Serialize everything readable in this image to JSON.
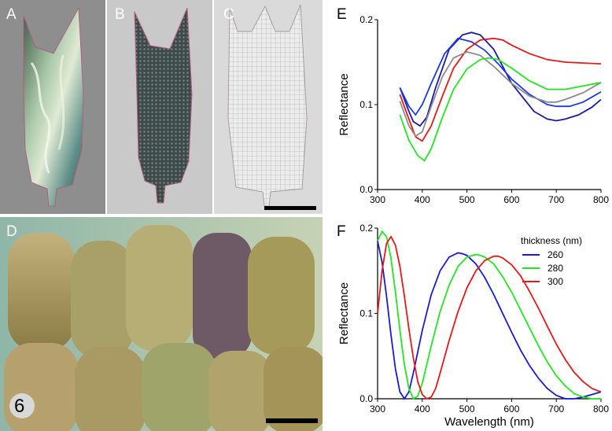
{
  "figure_number": "6",
  "panels": {
    "A": {
      "label": "A"
    },
    "B": {
      "label": "B"
    },
    "C": {
      "label": "C"
    },
    "D": {
      "label": "D"
    },
    "E": {
      "label": "E"
    },
    "F": {
      "label": "F"
    }
  },
  "chart_data": [
    {
      "panel": "E",
      "type": "line",
      "title": "",
      "xlabel": "",
      "ylabel": "Reflectance",
      "xlim": [
        300,
        800
      ],
      "ylim": [
        0.0,
        0.2
      ],
      "xticks": [
        "300",
        "400",
        "500",
        "600",
        "700",
        "800"
      ],
      "yticks": [
        "0.0",
        "0.1",
        "0.2"
      ],
      "series": [
        {
          "name": "blue-dark",
          "color": "#1a1aa8",
          "x": [
            350,
            370,
            380,
            395,
            410,
            430,
            460,
            490,
            510,
            530,
            560,
            600,
            650,
            680,
            700,
            720,
            750,
            780,
            800
          ],
          "y": [
            0.12,
            0.092,
            0.08,
            0.075,
            0.085,
            0.12,
            0.165,
            0.182,
            0.185,
            0.182,
            0.165,
            0.125,
            0.092,
            0.083,
            0.081,
            0.083,
            0.088,
            0.097,
            0.106
          ]
        },
        {
          "name": "blue",
          "color": "#1a3ae8",
          "x": [
            350,
            370,
            385,
            400,
            420,
            450,
            480,
            510,
            540,
            570,
            600,
            640,
            680,
            700,
            730,
            760,
            780,
            800
          ],
          "y": [
            0.12,
            0.098,
            0.088,
            0.1,
            0.125,
            0.16,
            0.178,
            0.174,
            0.164,
            0.148,
            0.13,
            0.112,
            0.1,
            0.098,
            0.098,
            0.103,
            0.109,
            0.115
          ]
        },
        {
          "name": "red",
          "color": "#e81818",
          "x": [
            350,
            370,
            385,
            400,
            420,
            445,
            470,
            500,
            530,
            560,
            580,
            600,
            640,
            680,
            720,
            760,
            800
          ],
          "y": [
            0.112,
            0.083,
            0.062,
            0.057,
            0.075,
            0.11,
            0.143,
            0.165,
            0.176,
            0.178,
            0.176,
            0.17,
            0.16,
            0.153,
            0.15,
            0.149,
            0.148
          ]
        },
        {
          "name": "gray",
          "color": "#8c8c8c",
          "x": [
            350,
            370,
            385,
            400,
            420,
            445,
            470,
            500,
            530,
            560,
            600,
            640,
            680,
            700,
            720,
            760,
            800
          ],
          "y": [
            0.104,
            0.075,
            0.063,
            0.068,
            0.098,
            0.133,
            0.155,
            0.162,
            0.158,
            0.145,
            0.125,
            0.11,
            0.103,
            0.103,
            0.106,
            0.114,
            0.126
          ]
        },
        {
          "name": "green",
          "color": "#22e622",
          "x": [
            350,
            370,
            390,
            405,
            420,
            445,
            470,
            500,
            530,
            550,
            570,
            600,
            640,
            680,
            720,
            760,
            800
          ],
          "y": [
            0.088,
            0.058,
            0.04,
            0.034,
            0.048,
            0.085,
            0.118,
            0.142,
            0.153,
            0.155,
            0.153,
            0.143,
            0.128,
            0.118,
            0.118,
            0.122,
            0.126
          ]
        }
      ]
    },
    {
      "panel": "F",
      "type": "line",
      "title": "",
      "xlabel": "Wavelength (nm)",
      "ylabel": "Reflectance",
      "xlim": [
        300,
        800
      ],
      "ylim": [
        0.0,
        0.2
      ],
      "xticks": [
        "300",
        "400",
        "500",
        "600",
        "700",
        "800"
      ],
      "yticks": [
        "0.0",
        "0.1",
        "0.2"
      ],
      "legend": {
        "title": "thickness (nm)",
        "position": "top-right",
        "entries": [
          {
            "label": "260",
            "color": "#1a1ad6"
          },
          {
            "label": "280",
            "color": "#22e622"
          },
          {
            "label": "300",
            "color": "#e81818"
          }
        ]
      },
      "series": [
        {
          "name": "260",
          "color": "#1a1ad6",
          "x": [
            300,
            310,
            320,
            330,
            340,
            350,
            360,
            370,
            380,
            390,
            400,
            420,
            440,
            460,
            480,
            490,
            500,
            520,
            540,
            560,
            580,
            600,
            620,
            640,
            660,
            680,
            700,
            720,
            740,
            760,
            780,
            800
          ],
          "y": [
            0.185,
            0.16,
            0.12,
            0.075,
            0.035,
            0.008,
            0.0,
            0.008,
            0.03,
            0.055,
            0.08,
            0.122,
            0.15,
            0.166,
            0.171,
            0.17,
            0.168,
            0.158,
            0.142,
            0.122,
            0.1,
            0.078,
            0.057,
            0.039,
            0.024,
            0.012,
            0.004,
            0.0,
            0.0,
            0.002,
            0.005,
            0.008
          ]
        },
        {
          "name": "280",
          "color": "#22e622",
          "x": [
            300,
            310,
            320,
            330,
            340,
            350,
            360,
            370,
            380,
            390,
            400,
            420,
            440,
            460,
            480,
            500,
            520,
            530,
            540,
            560,
            580,
            600,
            620,
            640,
            660,
            680,
            700,
            720,
            740,
            760,
            780,
            800
          ],
          "y": [
            0.185,
            0.196,
            0.19,
            0.165,
            0.125,
            0.08,
            0.04,
            0.012,
            0.0,
            0.003,
            0.018,
            0.062,
            0.102,
            0.133,
            0.155,
            0.166,
            0.169,
            0.168,
            0.166,
            0.158,
            0.143,
            0.125,
            0.104,
            0.083,
            0.062,
            0.043,
            0.027,
            0.015,
            0.006,
            0.002,
            0.0,
            0.0
          ]
        },
        {
          "name": "300",
          "color": "#e81818",
          "x": [
            300,
            310,
            320,
            330,
            340,
            350,
            360,
            370,
            380,
            390,
            400,
            410,
            420,
            430,
            440,
            460,
            480,
            500,
            520,
            540,
            560,
            570,
            580,
            600,
            620,
            640,
            660,
            680,
            700,
            720,
            740,
            760,
            780,
            800
          ],
          "y": [
            0.1,
            0.15,
            0.182,
            0.19,
            0.18,
            0.155,
            0.12,
            0.082,
            0.048,
            0.02,
            0.005,
            0.0,
            0.002,
            0.012,
            0.03,
            0.068,
            0.102,
            0.13,
            0.15,
            0.162,
            0.167,
            0.167,
            0.165,
            0.157,
            0.144,
            0.126,
            0.106,
            0.085,
            0.064,
            0.046,
            0.031,
            0.02,
            0.012,
            0.008
          ]
        }
      ]
    }
  ]
}
